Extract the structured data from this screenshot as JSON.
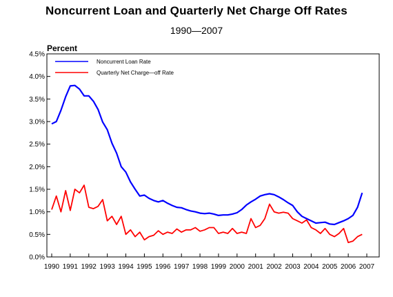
{
  "chart_data": {
    "type": "line",
    "title": "Noncurrent Loan and Quarterly Net Charge Off Rates",
    "subtitle": "1990—2007",
    "ylabel": "Percent",
    "xlabel": "",
    "xlim": [
      1990,
      2007
    ],
    "ylim": [
      0,
      4.5
    ],
    "y_ticks": [
      0.0,
      0.5,
      1.0,
      1.5,
      2.0,
      2.5,
      3.0,
      3.5,
      4.0,
      4.5
    ],
    "y_tick_labels": [
      "0.0%",
      "0.5%",
      "1.0%",
      "1.5%",
      "2.0%",
      "2.5%",
      "3.0%",
      "3.5%",
      "4.0%",
      "4.5%"
    ],
    "x_ticks": [
      1990,
      1991,
      1992,
      1993,
      1994,
      1995,
      1996,
      1997,
      1998,
      1999,
      2000,
      2001,
      2002,
      2003,
      2004,
      2005,
      2006,
      2007
    ],
    "x_tick_labels": [
      "1990",
      "1991",
      "1992",
      "1993",
      "1994",
      "1995",
      "1996",
      "1997",
      "1998",
      "1999",
      "2000",
      "2001",
      "2002",
      "2003",
      "2004",
      "2005",
      "2006",
      "2007"
    ],
    "grid": false,
    "legend_position": "top-left",
    "series": [
      {
        "name": "Noncurrent Loan Rate",
        "color": "#0000ff",
        "x": [
          1990.0,
          1990.25,
          1990.5,
          1990.75,
          1991.0,
          1991.25,
          1991.5,
          1991.75,
          1992.0,
          1992.25,
          1992.5,
          1992.75,
          1993.0,
          1993.25,
          1993.5,
          1993.75,
          1994.0,
          1994.25,
          1994.5,
          1994.75,
          1995.0,
          1995.25,
          1995.5,
          1995.75,
          1996.0,
          1996.25,
          1996.5,
          1996.75,
          1997.0,
          1997.25,
          1997.5,
          1997.75,
          1998.0,
          1998.25,
          1998.5,
          1998.75,
          1999.0,
          1999.25,
          1999.5,
          1999.75,
          2000.0,
          2000.25,
          2000.5,
          2000.75,
          2001.0,
          2001.25,
          2001.5,
          2001.75,
          2002.0,
          2002.25,
          2002.5,
          2002.75,
          2003.0,
          2003.25,
          2003.5,
          2003.75,
          2004.0,
          2004.25,
          2004.5,
          2004.75,
          2005.0,
          2005.25,
          2005.5,
          2005.75,
          2006.0,
          2006.25,
          2006.5,
          2006.75
        ],
        "values": [
          2.95,
          3.0,
          3.25,
          3.55,
          3.79,
          3.8,
          3.72,
          3.57,
          3.57,
          3.45,
          3.27,
          2.99,
          2.82,
          2.52,
          2.3,
          2.0,
          1.88,
          1.66,
          1.5,
          1.35,
          1.37,
          1.3,
          1.25,
          1.22,
          1.25,
          1.19,
          1.14,
          1.1,
          1.09,
          1.05,
          1.02,
          1.0,
          0.97,
          0.96,
          0.97,
          0.95,
          0.92,
          0.93,
          0.93,
          0.95,
          0.98,
          1.05,
          1.15,
          1.22,
          1.28,
          1.35,
          1.38,
          1.4,
          1.38,
          1.33,
          1.27,
          1.2,
          1.14,
          1.0,
          0.9,
          0.85,
          0.8,
          0.75,
          0.76,
          0.77,
          0.73,
          0.72,
          0.76,
          0.8,
          0.85,
          0.92,
          1.1,
          1.42
        ]
      },
      {
        "name": "Quarterly Net Charge—off Rate",
        "color": "#ff0000",
        "x": [
          1990.0,
          1990.25,
          1990.5,
          1990.75,
          1991.0,
          1991.25,
          1991.5,
          1991.75,
          1992.0,
          1992.25,
          1992.5,
          1992.75,
          1993.0,
          1993.25,
          1993.5,
          1993.75,
          1994.0,
          1994.25,
          1994.5,
          1994.75,
          1995.0,
          1995.25,
          1995.5,
          1995.75,
          1996.0,
          1996.25,
          1996.5,
          1996.75,
          1997.0,
          1997.25,
          1997.5,
          1997.75,
          1998.0,
          1998.25,
          1998.5,
          1998.75,
          1999.0,
          1999.25,
          1999.5,
          1999.75,
          2000.0,
          2000.25,
          2000.5,
          2000.75,
          2001.0,
          2001.25,
          2001.5,
          2001.75,
          2002.0,
          2002.25,
          2002.5,
          2002.75,
          2003.0,
          2003.25,
          2003.5,
          2003.75,
          2004.0,
          2004.25,
          2004.5,
          2004.75,
          2005.0,
          2005.25,
          2005.5,
          2005.75,
          2006.0,
          2006.25,
          2006.5,
          2006.75
        ],
        "values": [
          1.05,
          1.35,
          1.0,
          1.47,
          1.03,
          1.5,
          1.42,
          1.59,
          1.1,
          1.07,
          1.12,
          1.27,
          0.8,
          0.9,
          0.72,
          0.9,
          0.5,
          0.6,
          0.45,
          0.55,
          0.38,
          0.45,
          0.48,
          0.58,
          0.5,
          0.55,
          0.52,
          0.62,
          0.55,
          0.6,
          0.6,
          0.65,
          0.57,
          0.6,
          0.65,
          0.65,
          0.52,
          0.55,
          0.52,
          0.63,
          0.52,
          0.55,
          0.52,
          0.85,
          0.65,
          0.7,
          0.85,
          1.17,
          1.0,
          0.97,
          0.99,
          0.97,
          0.85,
          0.8,
          0.75,
          0.82,
          0.65,
          0.6,
          0.52,
          0.63,
          0.5,
          0.45,
          0.52,
          0.63,
          0.32,
          0.35,
          0.45,
          0.5
        ]
      }
    ]
  }
}
